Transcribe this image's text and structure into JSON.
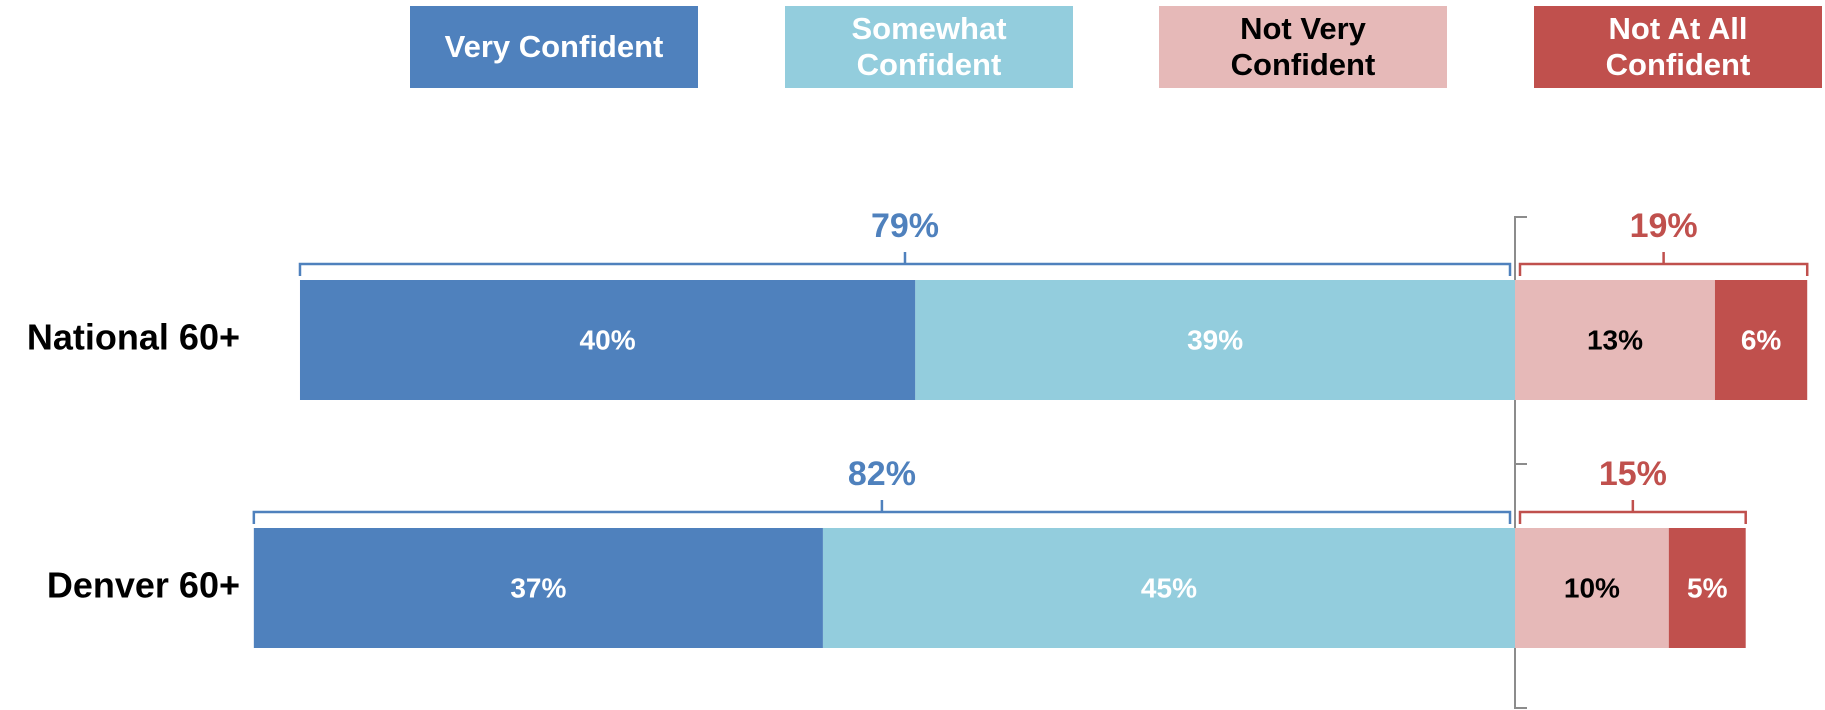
{
  "chart_data": {
    "type": "diverging_bar",
    "categories": [
      "National 60+",
      "Denver 60+"
    ],
    "series": [
      {
        "name": "Very Confident",
        "color": "#4f81bd",
        "label_color": "#ffffff",
        "side": "left",
        "values": [
          40,
          37
        ],
        "value_labels": [
          "40%",
          "37%"
        ]
      },
      {
        "name": "Somewhat Confident",
        "color": "#93cddd",
        "label_color": "#ffffff",
        "side": "left",
        "values": [
          39,
          45
        ],
        "value_labels": [
          "39%",
          "45%"
        ]
      },
      {
        "name": "Not Very Confident",
        "color": "#e6b9b8",
        "label_color": "#000000",
        "side": "right",
        "values": [
          13,
          10
        ],
        "value_labels": [
          "13%",
          "10%"
        ]
      },
      {
        "name": "Not At All Confident",
        "color": "#c0504d",
        "label_color": "#ffffff",
        "side": "right",
        "values": [
          6,
          5
        ],
        "value_labels": [
          "6%",
          "5%"
        ]
      }
    ],
    "totals": {
      "left": {
        "color": "#4f81bd",
        "values": [
          79,
          82
        ],
        "value_labels": [
          "79%",
          "82%"
        ]
      },
      "right": {
        "color": "#c0504d",
        "values": [
          19,
          15
        ],
        "value_labels": [
          "19%",
          "15%"
        ]
      }
    }
  }
}
